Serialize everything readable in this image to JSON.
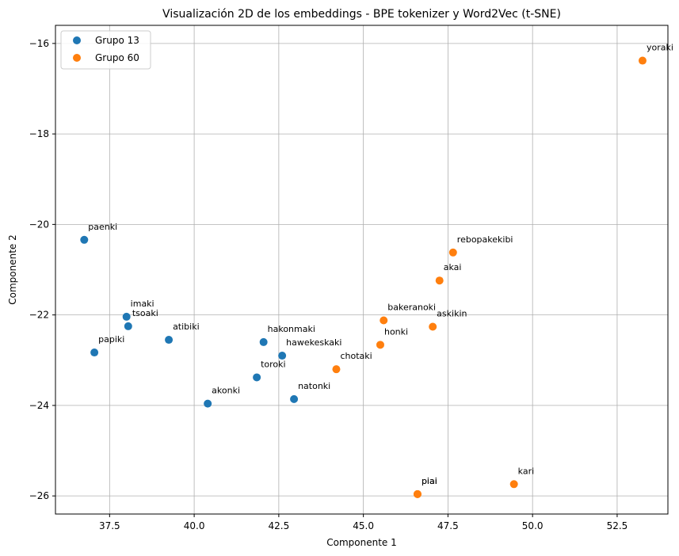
{
  "chart_data": {
    "type": "scatter",
    "title": "Visualización 2D de los embeddings - BPE tokenizer y Word2Vec (t-SNE)",
    "xlabel": "Componente 1",
    "ylabel": "Componente 2",
    "xlim": [
      35.9,
      54.0
    ],
    "ylim": [
      -26.4,
      -15.6
    ],
    "xticks": [
      37.5,
      40.0,
      42.5,
      45.0,
      47.5,
      50.0,
      52.5
    ],
    "xtick_labels": [
      "37.5",
      "40.0",
      "42.5",
      "45.0",
      "47.5",
      "50.0",
      "52.5"
    ],
    "yticks": [
      -26,
      -24,
      -22,
      -20,
      -18,
      -16
    ],
    "ytick_labels": [
      "−26",
      "−24",
      "−22",
      "−20",
      "−18",
      "−16"
    ],
    "grid": true,
    "legend_position": "top-left",
    "series": [
      {
        "name": "Grupo 13",
        "color": "#1f77b4",
        "points": [
          {
            "label": "paenki",
            "x": 36.75,
            "y": -20.34
          },
          {
            "label": "imaki",
            "x": 38.0,
            "y": -22.04
          },
          {
            "label": "tsoaki",
            "x": 38.05,
            "y": -22.25
          },
          {
            "label": "papiki",
            "x": 37.05,
            "y": -22.83
          },
          {
            "label": "atibiki",
            "x": 39.25,
            "y": -22.55
          },
          {
            "label": "hakonmaki",
            "x": 42.05,
            "y": -22.6
          },
          {
            "label": "hawekeskaki",
            "x": 42.6,
            "y": -22.9
          },
          {
            "label": "toroki",
            "x": 41.85,
            "y": -23.38
          },
          {
            "label": "natonki",
            "x": 42.95,
            "y": -23.86
          },
          {
            "label": "akonki",
            "x": 40.4,
            "y": -23.96
          }
        ]
      },
      {
        "name": "Grupo 60",
        "color": "#ff7f0e",
        "points": [
          {
            "label": "yoraki",
            "x": 53.25,
            "y": -16.38
          },
          {
            "label": "rebopakekibi",
            "x": 47.65,
            "y": -20.62
          },
          {
            "label": "akai",
            "x": 47.25,
            "y": -21.24
          },
          {
            "label": "bakeranoki",
            "x": 45.6,
            "y": -22.12
          },
          {
            "label": "askikin",
            "x": 47.05,
            "y": -22.26
          },
          {
            "label": "honki",
            "x": 45.5,
            "y": -22.66
          },
          {
            "label": "chotaki",
            "x": 44.2,
            "y": -23.2
          },
          {
            "label": "piai",
            "x": 46.6,
            "y": -25.96
          },
          {
            "label": "piai",
            "x": 46.6,
            "y": -25.96
          },
          {
            "label": "kari",
            "x": 49.45,
            "y": -25.74
          }
        ]
      }
    ]
  }
}
